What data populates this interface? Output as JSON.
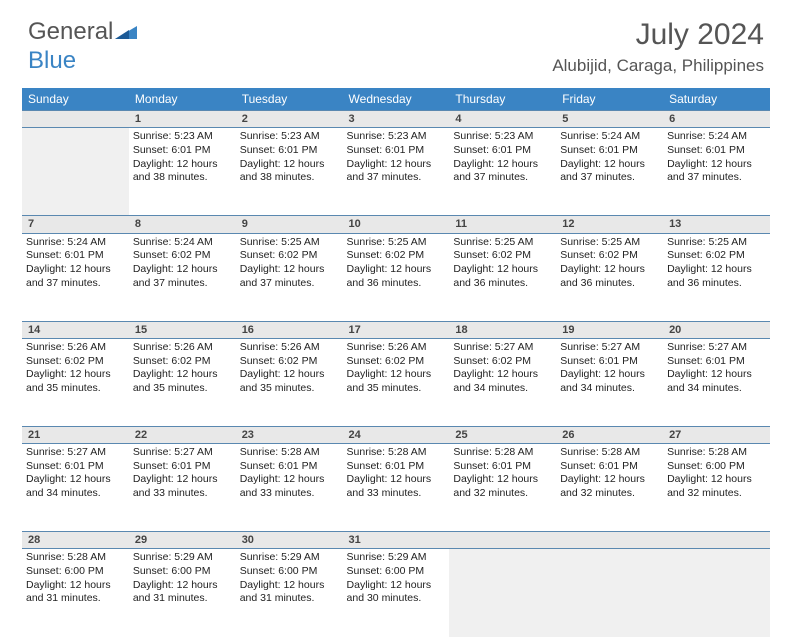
{
  "logo": {
    "text1": "General",
    "text2": "Blue"
  },
  "header": {
    "month": "July 2024",
    "location": "Alubijid, Caraga, Philippines"
  },
  "colors": {
    "header_bg": "#3a84c4",
    "daynum_bg": "#e8e8e8",
    "border": "#5a88b0"
  },
  "weekdays": [
    "Sunday",
    "Monday",
    "Tuesday",
    "Wednesday",
    "Thursday",
    "Friday",
    "Saturday"
  ],
  "weeks": [
    {
      "days": [
        {
          "num": "",
          "sunrise": "",
          "sunset": "",
          "daylight": ""
        },
        {
          "num": "1",
          "sunrise": "Sunrise: 5:23 AM",
          "sunset": "Sunset: 6:01 PM",
          "daylight": "Daylight: 12 hours and 38 minutes."
        },
        {
          "num": "2",
          "sunrise": "Sunrise: 5:23 AM",
          "sunset": "Sunset: 6:01 PM",
          "daylight": "Daylight: 12 hours and 38 minutes."
        },
        {
          "num": "3",
          "sunrise": "Sunrise: 5:23 AM",
          "sunset": "Sunset: 6:01 PM",
          "daylight": "Daylight: 12 hours and 37 minutes."
        },
        {
          "num": "4",
          "sunrise": "Sunrise: 5:23 AM",
          "sunset": "Sunset: 6:01 PM",
          "daylight": "Daylight: 12 hours and 37 minutes."
        },
        {
          "num": "5",
          "sunrise": "Sunrise: 5:24 AM",
          "sunset": "Sunset: 6:01 PM",
          "daylight": "Daylight: 12 hours and 37 minutes."
        },
        {
          "num": "6",
          "sunrise": "Sunrise: 5:24 AM",
          "sunset": "Sunset: 6:01 PM",
          "daylight": "Daylight: 12 hours and 37 minutes."
        }
      ]
    },
    {
      "days": [
        {
          "num": "7",
          "sunrise": "Sunrise: 5:24 AM",
          "sunset": "Sunset: 6:01 PM",
          "daylight": "Daylight: 12 hours and 37 minutes."
        },
        {
          "num": "8",
          "sunrise": "Sunrise: 5:24 AM",
          "sunset": "Sunset: 6:02 PM",
          "daylight": "Daylight: 12 hours and 37 minutes."
        },
        {
          "num": "9",
          "sunrise": "Sunrise: 5:25 AM",
          "sunset": "Sunset: 6:02 PM",
          "daylight": "Daylight: 12 hours and 37 minutes."
        },
        {
          "num": "10",
          "sunrise": "Sunrise: 5:25 AM",
          "sunset": "Sunset: 6:02 PM",
          "daylight": "Daylight: 12 hours and 36 minutes."
        },
        {
          "num": "11",
          "sunrise": "Sunrise: 5:25 AM",
          "sunset": "Sunset: 6:02 PM",
          "daylight": "Daylight: 12 hours and 36 minutes."
        },
        {
          "num": "12",
          "sunrise": "Sunrise: 5:25 AM",
          "sunset": "Sunset: 6:02 PM",
          "daylight": "Daylight: 12 hours and 36 minutes."
        },
        {
          "num": "13",
          "sunrise": "Sunrise: 5:25 AM",
          "sunset": "Sunset: 6:02 PM",
          "daylight": "Daylight: 12 hours and 36 minutes."
        }
      ]
    },
    {
      "days": [
        {
          "num": "14",
          "sunrise": "Sunrise: 5:26 AM",
          "sunset": "Sunset: 6:02 PM",
          "daylight": "Daylight: 12 hours and 35 minutes."
        },
        {
          "num": "15",
          "sunrise": "Sunrise: 5:26 AM",
          "sunset": "Sunset: 6:02 PM",
          "daylight": "Daylight: 12 hours and 35 minutes."
        },
        {
          "num": "16",
          "sunrise": "Sunrise: 5:26 AM",
          "sunset": "Sunset: 6:02 PM",
          "daylight": "Daylight: 12 hours and 35 minutes."
        },
        {
          "num": "17",
          "sunrise": "Sunrise: 5:26 AM",
          "sunset": "Sunset: 6:02 PM",
          "daylight": "Daylight: 12 hours and 35 minutes."
        },
        {
          "num": "18",
          "sunrise": "Sunrise: 5:27 AM",
          "sunset": "Sunset: 6:02 PM",
          "daylight": "Daylight: 12 hours and 34 minutes."
        },
        {
          "num": "19",
          "sunrise": "Sunrise: 5:27 AM",
          "sunset": "Sunset: 6:01 PM",
          "daylight": "Daylight: 12 hours and 34 minutes."
        },
        {
          "num": "20",
          "sunrise": "Sunrise: 5:27 AM",
          "sunset": "Sunset: 6:01 PM",
          "daylight": "Daylight: 12 hours and 34 minutes."
        }
      ]
    },
    {
      "days": [
        {
          "num": "21",
          "sunrise": "Sunrise: 5:27 AM",
          "sunset": "Sunset: 6:01 PM",
          "daylight": "Daylight: 12 hours and 34 minutes."
        },
        {
          "num": "22",
          "sunrise": "Sunrise: 5:27 AM",
          "sunset": "Sunset: 6:01 PM",
          "daylight": "Daylight: 12 hours and 33 minutes."
        },
        {
          "num": "23",
          "sunrise": "Sunrise: 5:28 AM",
          "sunset": "Sunset: 6:01 PM",
          "daylight": "Daylight: 12 hours and 33 minutes."
        },
        {
          "num": "24",
          "sunrise": "Sunrise: 5:28 AM",
          "sunset": "Sunset: 6:01 PM",
          "daylight": "Daylight: 12 hours and 33 minutes."
        },
        {
          "num": "25",
          "sunrise": "Sunrise: 5:28 AM",
          "sunset": "Sunset: 6:01 PM",
          "daylight": "Daylight: 12 hours and 32 minutes."
        },
        {
          "num": "26",
          "sunrise": "Sunrise: 5:28 AM",
          "sunset": "Sunset: 6:01 PM",
          "daylight": "Daylight: 12 hours and 32 minutes."
        },
        {
          "num": "27",
          "sunrise": "Sunrise: 5:28 AM",
          "sunset": "Sunset: 6:00 PM",
          "daylight": "Daylight: 12 hours and 32 minutes."
        }
      ]
    },
    {
      "days": [
        {
          "num": "28",
          "sunrise": "Sunrise: 5:28 AM",
          "sunset": "Sunset: 6:00 PM",
          "daylight": "Daylight: 12 hours and 31 minutes."
        },
        {
          "num": "29",
          "sunrise": "Sunrise: 5:29 AM",
          "sunset": "Sunset: 6:00 PM",
          "daylight": "Daylight: 12 hours and 31 minutes."
        },
        {
          "num": "30",
          "sunrise": "Sunrise: 5:29 AM",
          "sunset": "Sunset: 6:00 PM",
          "daylight": "Daylight: 12 hours and 31 minutes."
        },
        {
          "num": "31",
          "sunrise": "Sunrise: 5:29 AM",
          "sunset": "Sunset: 6:00 PM",
          "daylight": "Daylight: 12 hours and 30 minutes."
        },
        {
          "num": "",
          "sunrise": "",
          "sunset": "",
          "daylight": ""
        },
        {
          "num": "",
          "sunrise": "",
          "sunset": "",
          "daylight": ""
        },
        {
          "num": "",
          "sunrise": "",
          "sunset": "",
          "daylight": ""
        }
      ]
    }
  ]
}
